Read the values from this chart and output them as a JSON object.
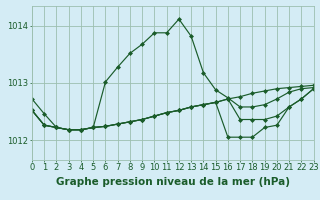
{
  "background_color": "#d4ecf5",
  "grid_color": "#9dbfb0",
  "line_color": "#1a5c2a",
  "bottom_label": "Graphe pression niveau de la mer (hPa)",
  "xlim": [
    0,
    23
  ],
  "ylim": [
    1011.65,
    1014.35
  ],
  "yticks": [
    1012,
    1013,
    1014
  ],
  "xticks": [
    0,
    1,
    2,
    3,
    4,
    5,
    6,
    7,
    8,
    9,
    10,
    11,
    12,
    13,
    14,
    15,
    16,
    17,
    18,
    19,
    20,
    21,
    22,
    23
  ],
  "series": [
    [
      1012.72,
      1012.46,
      1012.22,
      1012.18,
      1012.18,
      1012.22,
      1013.02,
      1013.28,
      1013.52,
      1013.68,
      1013.88,
      1013.88,
      1014.12,
      1013.82,
      1013.18,
      1012.88,
      1012.74,
      1012.58,
      1012.58,
      1012.62,
      1012.72,
      1012.84,
      1012.9,
      1012.92
    ],
    [
      1012.52,
      1012.26,
      1012.22,
      1012.18,
      1012.18,
      1012.22,
      1012.24,
      1012.28,
      1012.32,
      1012.36,
      1012.42,
      1012.48,
      1012.52,
      1012.58,
      1012.62,
      1012.66,
      1012.72,
      1012.76,
      1012.82,
      1012.86,
      1012.9,
      1012.92,
      1012.94,
      1012.96
    ],
    [
      1012.52,
      1012.26,
      1012.22,
      1012.18,
      1012.18,
      1012.22,
      1012.24,
      1012.28,
      1012.32,
      1012.36,
      1012.42,
      1012.48,
      1012.52,
      1012.58,
      1012.62,
      1012.66,
      1012.05,
      1012.05,
      1012.05,
      1012.22,
      1012.26,
      1012.58,
      1012.72,
      1012.9
    ],
    [
      1012.52,
      1012.26,
      1012.22,
      1012.18,
      1012.18,
      1012.22,
      1012.24,
      1012.28,
      1012.32,
      1012.36,
      1012.42,
      1012.48,
      1012.52,
      1012.58,
      1012.62,
      1012.66,
      1012.72,
      1012.36,
      1012.36,
      1012.36,
      1012.42,
      1012.58,
      1012.72,
      1012.9
    ]
  ],
  "title_fontsize": 7.5,
  "tick_fontsize": 6.0,
  "title_color": "#1a5c2a",
  "tick_color": "#1a5c2a",
  "marker": "D",
  "marker_size": 2.0,
  "linewidth": 0.85
}
